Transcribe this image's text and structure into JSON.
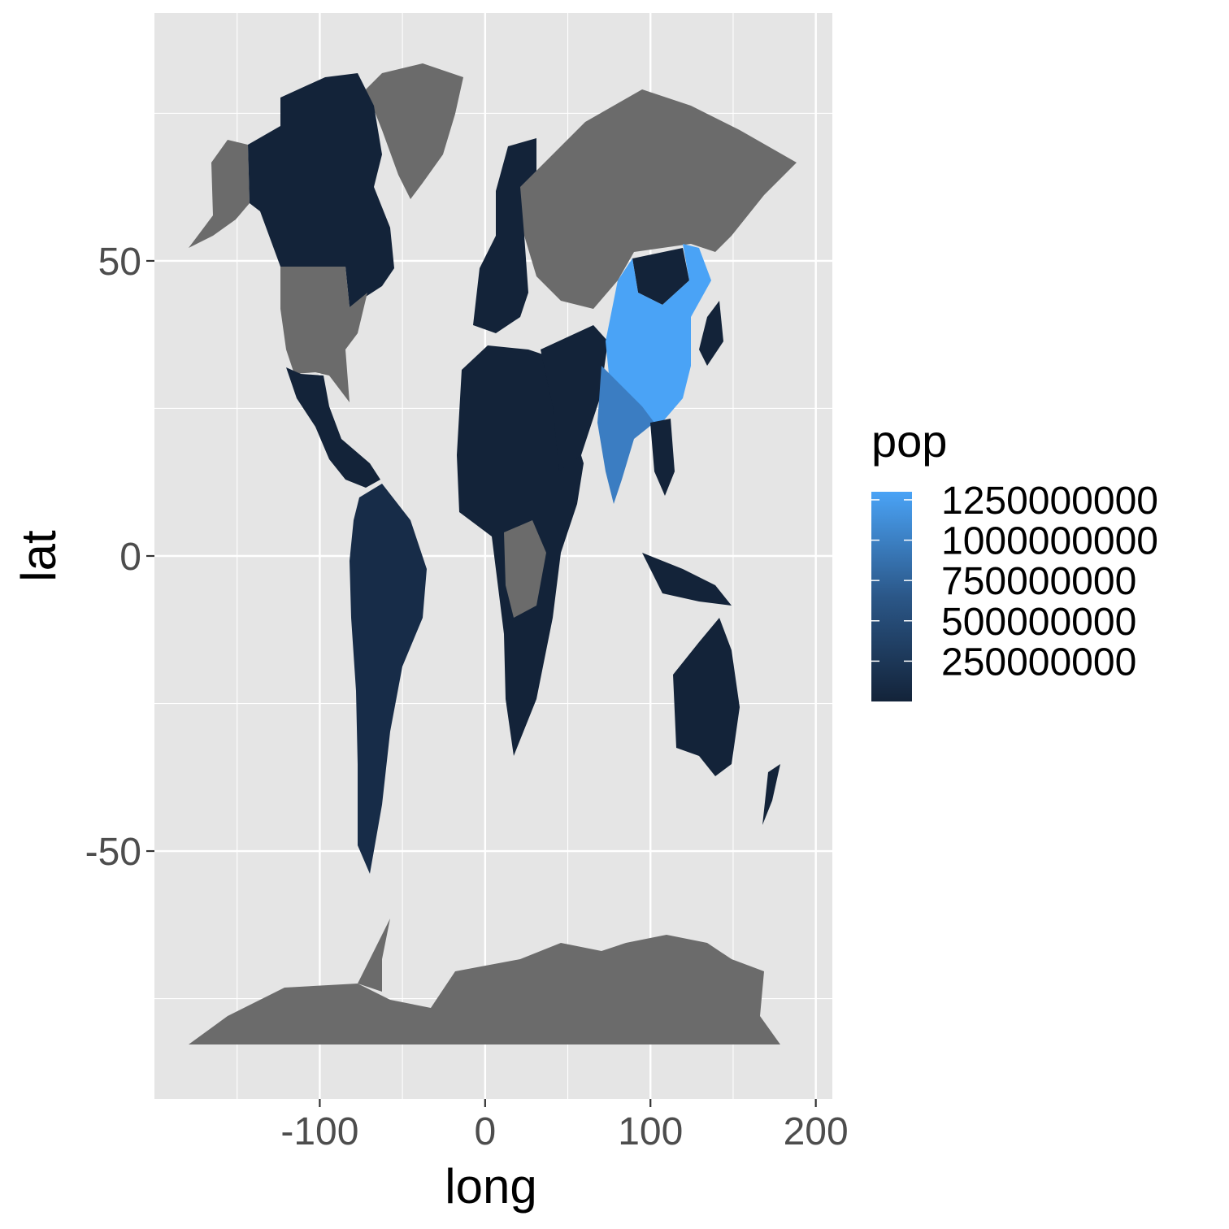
{
  "chart_data": {
    "type": "map",
    "title": "",
    "xlabel": "long",
    "ylabel": "lat",
    "xlim": [
      -200,
      210
    ],
    "ylim": [
      -92,
      92
    ],
    "x_ticks": [
      -100,
      0,
      100,
      200
    ],
    "x_tick_labels": [
      "-100",
      "0",
      "100",
      "200"
    ],
    "y_ticks": [
      50,
      0,
      -50
    ],
    "y_tick_labels": [
      "50",
      "0",
      "-50"
    ],
    "grid": true,
    "background": "#e5e5e5",
    "legend": {
      "title": "pop",
      "position": "right",
      "scale": "continuous",
      "low_color": "#132339",
      "high_color": "#4aa3f6",
      "na_color": "#6b6b6b",
      "range": [
        0,
        1300000000
      ],
      "breaks": [
        250000000,
        500000000,
        750000000,
        1000000000,
        1250000000
      ],
      "labels": [
        "250000000",
        "500000000",
        "750000000",
        "1000000000",
        "1250000000"
      ]
    },
    "regions": [
      {
        "group": "China",
        "fill": "highest population (~1.3 billion)"
      },
      {
        "group": "India",
        "fill": "~1.0 billion"
      },
      {
        "group": "South America",
        "fill": "low"
      },
      {
        "group": "Canada, Mexico, Africa, Europe, Australia, Southeast Asia",
        "fill": "low"
      },
      {
        "group": "USA, Russia, Greenland, Antarctica, Kazakhstan, Mongolia-region, parts of central Africa",
        "fill": "NA"
      }
    ]
  }
}
